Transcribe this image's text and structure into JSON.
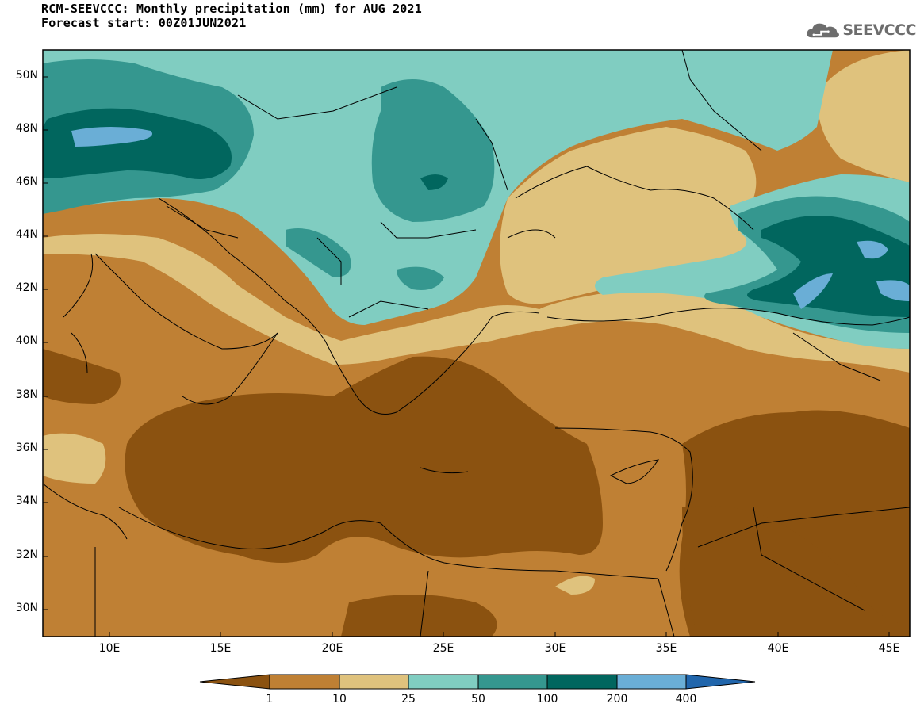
{
  "title": {
    "line1": "RCM-SEEVCCC: Monthly precipitation (mm) for AUG 2021",
    "line2": "Forecast start: 00Z01JUN2021"
  },
  "logo": {
    "text": "SEEVCCC",
    "icon": "cloud-icon"
  },
  "map": {
    "lat_labels": [
      "50N",
      "48N",
      "46N",
      "44N",
      "42N",
      "40N",
      "38N",
      "36N",
      "34N",
      "32N",
      "30N"
    ],
    "lon_labels": [
      "10E",
      "15E",
      "20E",
      "25E",
      "30E",
      "35E",
      "40E",
      "45E"
    ],
    "lat_range": [
      29,
      51
    ],
    "lon_range": [
      7,
      46
    ]
  },
  "legend": {
    "thresholds": [
      "1",
      "10",
      "25",
      "50",
      "100",
      "200",
      "400"
    ],
    "colors": {
      "lt1": "#8b5210",
      "1-10": "#bf8034",
      "10-25": "#dfc27d",
      "25-50": "#80cdc1",
      "50-100": "#35978f",
      "100-200": "#01665e",
      "200-400": "#6aaed6",
      "gt400": "#2166ac"
    }
  }
}
